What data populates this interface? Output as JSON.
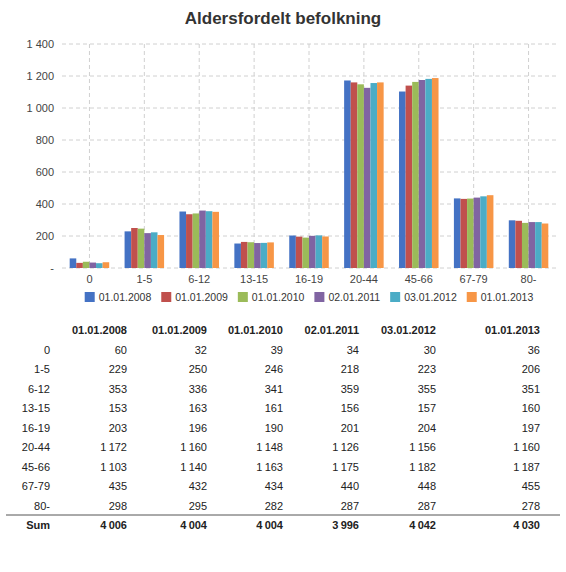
{
  "chart_data": [
    {
      "type": "bar",
      "title": "Aldersfordelt befolkning",
      "categories": [
        "0",
        "1-5",
        "6-12",
        "13-15",
        "16-19",
        "20-44",
        "45-66",
        "67-79",
        "80-"
      ],
      "series": [
        {
          "name": "01.01.2008",
          "color": "#4472C4",
          "values": [
            60,
            229,
            353,
            153,
            203,
            1172,
            1103,
            435,
            298
          ]
        },
        {
          "name": "01.01.2009",
          "color": "#C0504D",
          "values": [
            32,
            250,
            336,
            163,
            196,
            1160,
            1140,
            432,
            295
          ]
        },
        {
          "name": "01.01.2010",
          "color": "#9BBB59",
          "values": [
            39,
            246,
            341,
            161,
            190,
            1148,
            1163,
            434,
            282
          ]
        },
        {
          "name": "02.01.2011",
          "color": "#8064A2",
          "values": [
            34,
            218,
            359,
            156,
            201,
            1126,
            1175,
            440,
            287
          ]
        },
        {
          "name": "03.01.2012",
          "color": "#4BACC6",
          "values": [
            30,
            223,
            355,
            157,
            204,
            1156,
            1182,
            448,
            287
          ]
        },
        {
          "name": "01.01.2013",
          "color": "#F79646",
          "values": [
            36,
            206,
            351,
            160,
            197,
            1160,
            1187,
            455,
            278
          ]
        }
      ],
      "ylim": [
        0,
        1400
      ],
      "yticks": [
        {
          "value": 0,
          "label": "-"
        },
        200,
        400,
        600,
        800,
        {
          "value": 1000,
          "label": "1 000"
        },
        {
          "value": 1200,
          "label": "1 200"
        },
        {
          "value": 1400,
          "label": "1 400"
        }
      ],
      "grid": true,
      "legend": "bottom"
    },
    {
      "type": "table",
      "columns": [
        "01.01.2008",
        "01.01.2009",
        "01.01.2010",
        "02.01.2011",
        "03.01.2012",
        "01.01.2013"
      ],
      "rows": [
        {
          "name": "0",
          "values": [
            60,
            32,
            39,
            34,
            30,
            36
          ]
        },
        {
          "name": "1-5",
          "values": [
            229,
            250,
            246,
            218,
            223,
            206
          ]
        },
        {
          "name": "6-12",
          "values": [
            353,
            336,
            341,
            359,
            355,
            351
          ]
        },
        {
          "name": "13-15",
          "values": [
            153,
            163,
            161,
            156,
            157,
            160
          ]
        },
        {
          "name": "16-19",
          "values": [
            203,
            196,
            190,
            201,
            204,
            197
          ]
        },
        {
          "name": "20-44",
          "values": [
            1172,
            1160,
            1148,
            1126,
            1156,
            1160
          ],
          "value_labels": [
            "1 172",
            "1 160",
            "1 148",
            "1 126",
            "1 156",
            "1 160"
          ]
        },
        {
          "name": "45-66",
          "values": [
            1103,
            1140,
            1163,
            1175,
            1182,
            1187
          ],
          "value_labels": [
            "1 103",
            "1 140",
            "1 163",
            "1 175",
            "1 182",
            "1 187"
          ]
        },
        {
          "name": "67-79",
          "values": [
            435,
            432,
            434,
            440,
            448,
            455
          ]
        },
        {
          "name": "80-",
          "values": [
            298,
            295,
            282,
            287,
            287,
            278
          ]
        },
        {
          "name": "Sum",
          "values": [
            4006,
            4004,
            4004,
            3996,
            4042,
            4030
          ],
          "value_labels": [
            "4 006",
            "4 004",
            "4 004",
            "3 996",
            "4 042",
            "4 030"
          ]
        }
      ]
    }
  ]
}
